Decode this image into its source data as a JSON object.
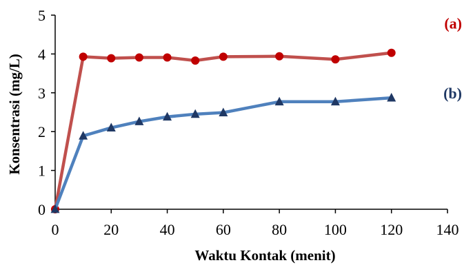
{
  "chart_data": {
    "type": "line",
    "title": "",
    "xlabel": "Waktu Kontak (menit)",
    "ylabel": "Konsentrasi (mg/L)",
    "xlim": [
      0,
      140
    ],
    "ylim": [
      0,
      5
    ],
    "xticks": [
      "0",
      "20",
      "40",
      "60",
      "80",
      "100",
      "120",
      "140"
    ],
    "yticks": [
      "0",
      "1",
      "2",
      "3",
      "4",
      "5"
    ],
    "grid": false,
    "x": [
      0,
      10,
      20,
      30,
      40,
      50,
      60,
      80,
      100,
      120
    ],
    "series": [
      {
        "name": "(a)",
        "color": "#c0504d",
        "marker_color": "#c00000",
        "marker": "circle",
        "values": [
          0,
          3.93,
          3.89,
          3.91,
          3.91,
          3.83,
          3.93,
          3.94,
          3.86,
          4.03
        ]
      },
      {
        "name": "(b)",
        "color": "#4f81bd",
        "marker_color": "#1f3864",
        "marker": "triangle",
        "values": [
          0,
          1.89,
          2.1,
          2.26,
          2.38,
          2.45,
          2.49,
          2.77,
          2.77,
          2.87
        ]
      }
    ]
  }
}
